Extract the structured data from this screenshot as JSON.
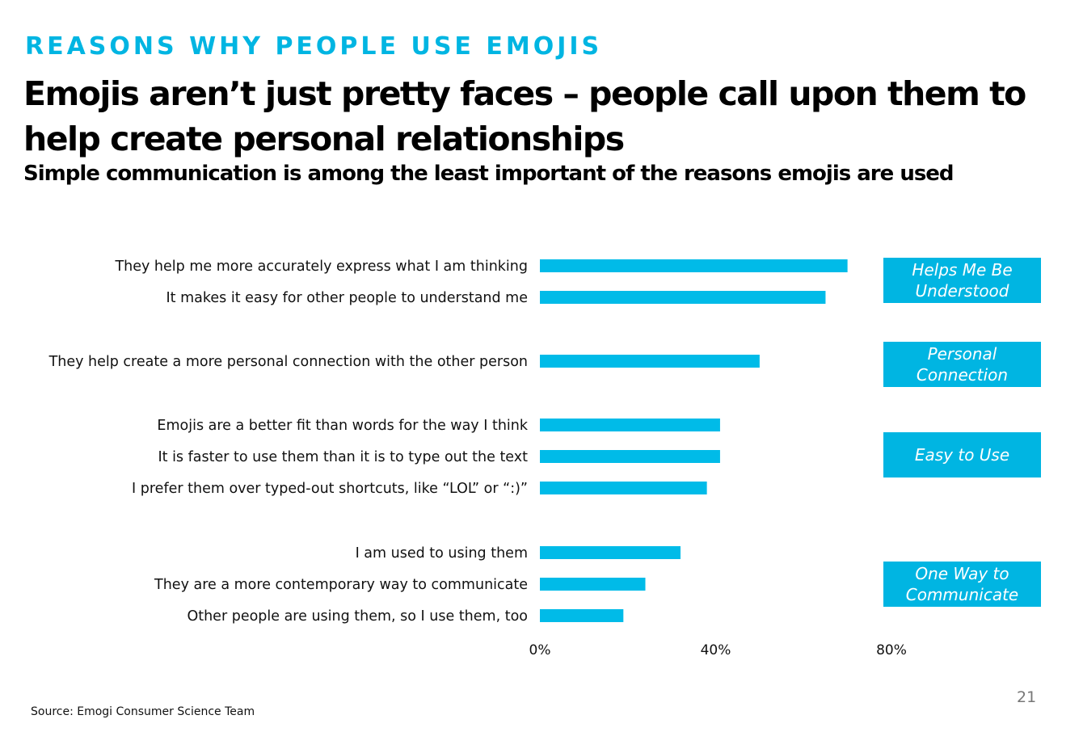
{
  "eyebrow": "REASONS WHY PEOPLE USE EMOJIS",
  "headline": "Emojis aren’t just pretty faces – people call upon them to help create personal relationships",
  "subhead": "Simple communication is among the least important of the reasons emojis are used",
  "source": "Source: Emogi Consumer Science Team",
  "page_number": "21",
  "colors": {
    "accent": "#00b5e2",
    "bar": "#00bbe8"
  },
  "groups": [
    {
      "label": "Helps Me Be Understood"
    },
    {
      "label": "Personal Connection"
    },
    {
      "label": "Easy to Use"
    },
    {
      "label": "One Way to Communicate"
    }
  ],
  "chart_data": {
    "type": "bar",
    "orientation": "horizontal",
    "categories": [
      "They help me more accurately express what I am thinking",
      "It makes it easy for other people to understand me",
      "They help create a more personal connection with the other person",
      "Emojis are a better fit than words for the way I think",
      "It is faster to use them than it is to type out the text",
      "I prefer them over typed-out shortcuts, like “LOL” or “:)”",
      "I am used to using them",
      "They are a more contemporary way to communicate",
      "Other people are using them, so I use them, too"
    ],
    "values": [
      70,
      65,
      50,
      41,
      41,
      38,
      32,
      24,
      19
    ],
    "category_group": [
      0,
      0,
      1,
      2,
      2,
      2,
      3,
      3,
      3
    ],
    "xlim": [
      0,
      80
    ],
    "x_ticks": [
      "0%",
      "40%",
      "80%"
    ],
    "grid": false,
    "legend": "none"
  }
}
